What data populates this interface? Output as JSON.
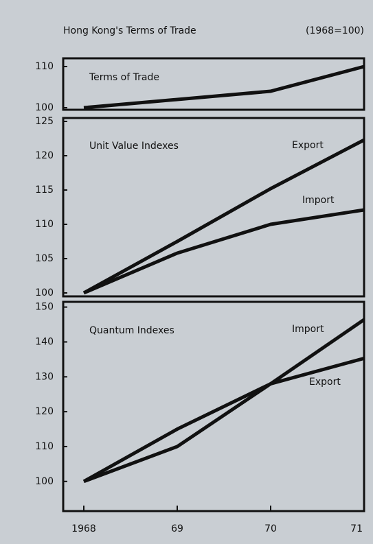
{
  "title": "Hong Kong's Terms of Trade",
  "note": "(1968=100)",
  "xlim": [
    1968,
    1971
  ],
  "xticks": [
    {
      "value": 1968,
      "label": "1968"
    },
    {
      "value": 1969,
      "label": "69"
    },
    {
      "value": 1970,
      "label": "70"
    },
    {
      "value": 1971,
      "label": "71"
    }
  ],
  "chart_data": [
    {
      "type": "line",
      "title": "Terms of Trade",
      "x": [
        1968,
        1970,
        1971
      ],
      "values": [
        100,
        104,
        110
      ],
      "color": "#111111",
      "ylim": [
        99.5,
        112
      ],
      "yticks": [
        100,
        110
      ]
    },
    {
      "type": "line",
      "title": "Unit Value Indexes",
      "x": [
        1968,
        1969,
        1970,
        1971
      ],
      "series": [
        {
          "name": "Export",
          "color": "#111111",
          "values": [
            100,
            107.5,
            115.2,
            122.3
          ]
        },
        {
          "name": "Import",
          "color": "#111111",
          "values": [
            100,
            105.8,
            110,
            112.1
          ]
        }
      ],
      "ylim": [
        99.5,
        125.5
      ],
      "yticks": [
        100,
        105,
        110,
        115,
        120,
        125
      ]
    },
    {
      "type": "line",
      "title": "Quantum Indexes",
      "x": [
        1968,
        1969,
        1970,
        1971
      ],
      "series": [
        {
          "name": "Import",
          "color": "#111111",
          "values": [
            100,
            110,
            128,
            146.4
          ]
        },
        {
          "name": "Export",
          "color": "#111111",
          "values": [
            100,
            115,
            128,
            135.3
          ]
        }
      ],
      "ylim": [
        91.5,
        151.5
      ],
      "yticks": [
        100,
        110,
        120,
        130,
        140,
        150
      ]
    }
  ]
}
